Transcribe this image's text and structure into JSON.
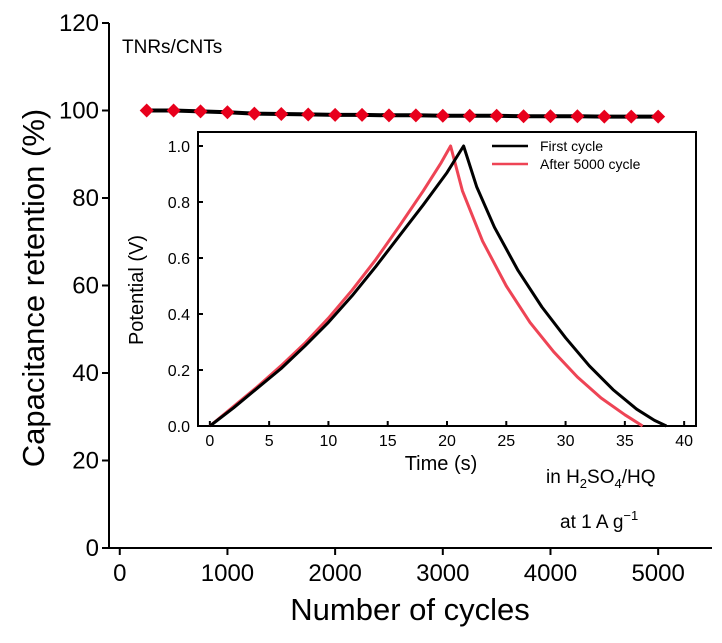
{
  "chart_data": [
    {
      "type": "scatter",
      "xlabel": "Number of cycles",
      "ylabel": "Capacitance retention (%)",
      "xlim": [
        -100,
        5500
      ],
      "ylim": [
        0,
        120
      ],
      "xticks": [
        "0",
        "1000",
        "2000",
        "3000",
        "4000",
        "5000"
      ],
      "yticks": [
        "0",
        "20",
        "40",
        "60",
        "80",
        "100",
        "120"
      ],
      "annotation": "TNRs/CNTs",
      "series": [
        {
          "color": "#e8001c",
          "marker": "diamond",
          "line_color": "#000000",
          "x": [
            250,
            500,
            750,
            1000,
            1250,
            1500,
            1750,
            2000,
            2250,
            2500,
            2750,
            3000,
            3250,
            3500,
            3750,
            4000,
            4250,
            4500,
            4750,
            5000
          ],
          "y": [
            100,
            100,
            99.8,
            99.6,
            99.3,
            99.2,
            99.1,
            99.0,
            99.0,
            98.9,
            98.9,
            98.8,
            98.8,
            98.8,
            98.7,
            98.7,
            98.7,
            98.6,
            98.6,
            98.6
          ]
        }
      ]
    },
    {
      "type": "line",
      "xlabel": "Time (s)",
      "ylabel": "Potential (V)",
      "xlim": [
        -1,
        41
      ],
      "ylim": [
        0,
        1.05
      ],
      "xticks": [
        "0",
        "5",
        "10",
        "15",
        "20",
        "25",
        "30",
        "35",
        "40"
      ],
      "yticks": [
        "0.0",
        "0.2",
        "0.4",
        "0.6",
        "0.8",
        "1.0"
      ],
      "legend_position": "top-right",
      "series": [
        {
          "name": "First cycle",
          "color": "#000000",
          "x": [
            0,
            2,
            4,
            6,
            8,
            10,
            12,
            14,
            16,
            18,
            20,
            21.4,
            22.5,
            24,
            26,
            28,
            30,
            32,
            34,
            36,
            37.5,
            38.5
          ],
          "y": [
            0.0,
            0.065,
            0.135,
            0.205,
            0.285,
            0.37,
            0.465,
            0.57,
            0.68,
            0.79,
            0.905,
            1.0,
            0.855,
            0.71,
            0.555,
            0.425,
            0.315,
            0.215,
            0.13,
            0.06,
            0.02,
            0.0
          ]
        },
        {
          "name": "After 5000 cycle",
          "color": "#ee4455",
          "x": [
            0,
            2,
            4,
            6,
            8,
            10,
            12,
            14,
            16,
            18,
            19.5,
            20.3,
            21.3,
            23,
            25,
            27,
            29,
            31,
            33,
            35,
            36.5
          ],
          "y": [
            0.0,
            0.07,
            0.14,
            0.215,
            0.295,
            0.385,
            0.485,
            0.595,
            0.715,
            0.84,
            0.94,
            1.0,
            0.84,
            0.66,
            0.5,
            0.37,
            0.265,
            0.175,
            0.1,
            0.04,
            0.0
          ]
        }
      ]
    }
  ],
  "annotations": {
    "sample": "TNRs/CNTs",
    "electrolyte_prefix": "in H",
    "electrolyte_sub1": "2",
    "electrolyte_mid": "SO",
    "electrolyte_sub2": "4",
    "electrolyte_suffix": "/HQ",
    "current_prefix": "at 1 A g",
    "current_sup": "−1"
  }
}
